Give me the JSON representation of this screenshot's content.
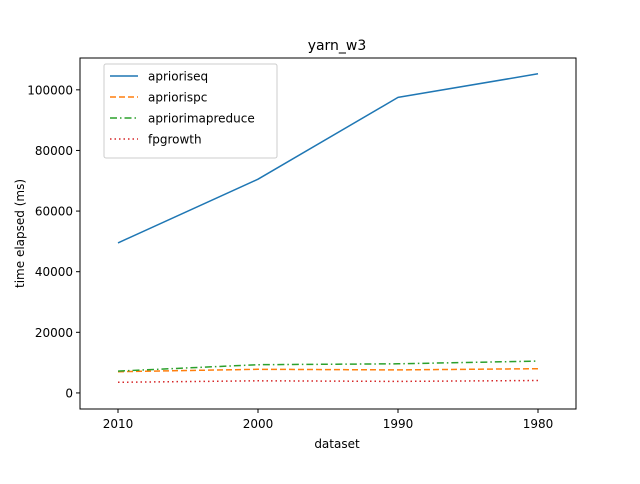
{
  "chart_data": {
    "type": "line",
    "title": "yarn_w3",
    "xlabel": "dataset",
    "ylabel": "time elapsed (ms)",
    "categories": [
      "2010",
      "2000",
      "1990",
      "1980"
    ],
    "ylim": [
      -5300,
      110500
    ],
    "yticks": [
      0,
      20000,
      40000,
      60000,
      80000,
      100000
    ],
    "ytick_labels": [
      "0",
      "20000",
      "40000",
      "60000",
      "80000",
      "100000"
    ],
    "grid": false,
    "legend_position": "top-left",
    "series": [
      {
        "name": "aprioriseq",
        "values": [
          49500,
          70500,
          97500,
          105300
        ],
        "color": "#1f77b4",
        "style": "solid"
      },
      {
        "name": "apriorispc",
        "values": [
          7000,
          7800,
          7600,
          8000
        ],
        "color": "#ff7f0e",
        "style": "dashed"
      },
      {
        "name": "apriorimapreduce",
        "values": [
          7200,
          9300,
          9600,
          10500
        ],
        "color": "#2ca02c",
        "style": "dashdot"
      },
      {
        "name": "fpgrowth",
        "values": [
          3500,
          4000,
          3800,
          4100
        ],
        "color": "#d62728",
        "style": "dotted"
      }
    ]
  }
}
